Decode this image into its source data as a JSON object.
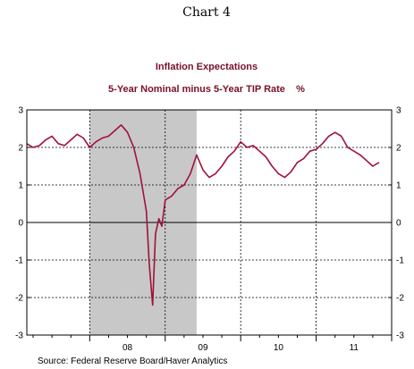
{
  "page_header": "Chart 4",
  "source": "Source:  Federal Reserve Board/Haver Analytics",
  "chart_data": {
    "type": "line",
    "title": "Inflation Expectations",
    "subtitle": "5-Year Nominal minus 5-Year TIP Rate    %",
    "xlabel": "",
    "ylabel": "",
    "ylim": [
      -3,
      3
    ],
    "y_ticks": [
      3,
      2,
      1,
      0,
      -1,
      -2,
      -3
    ],
    "y_tick_labels": [
      "3",
      "2",
      "1",
      "0",
      "-1",
      "-2",
      "-3"
    ],
    "xlim": [
      "2007-03",
      "2012-01"
    ],
    "x_tick_labels": [
      {
        "label": "08",
        "x": "2008-07"
      },
      {
        "label": "09",
        "x": "2009-07"
      },
      {
        "label": "10",
        "x": "2010-07"
      },
      {
        "label": "11",
        "x": "2011-07"
      }
    ],
    "vertical_gridlines_at": [
      "2008-01",
      "2009-01",
      "2010-01",
      "2011-01",
      "2012-01"
    ],
    "horizontal_gridlines": true,
    "recession_shading": {
      "start": "2008-01",
      "end": "2009-06",
      "color": "#c8c8c8"
    },
    "line_color": "#a0113a",
    "series": [
      {
        "name": "",
        "x": [
          "2007-03",
          "2007-04",
          "2007-05",
          "2007-06",
          "2007-07",
          "2007-08",
          "2007-09",
          "2007-10",
          "2007-11",
          "2007-12",
          "2008-01",
          "2008-02",
          "2008-03",
          "2008-04",
          "2008-05",
          "2008-06",
          "2008-07",
          "2008-08",
          "2008-09",
          "2008-10",
          "2008-10-15",
          "2008-11",
          "2008-11-15",
          "2008-12",
          "2008-12-15",
          "2009-01",
          "2009-02",
          "2009-03",
          "2009-04",
          "2009-05",
          "2009-06",
          "2009-07",
          "2009-08",
          "2009-09",
          "2009-10",
          "2009-11",
          "2009-12",
          "2010-01",
          "2010-02",
          "2010-03",
          "2010-04",
          "2010-05",
          "2010-06",
          "2010-07",
          "2010-08",
          "2010-09",
          "2010-10",
          "2010-11",
          "2010-12",
          "2011-01",
          "2011-02",
          "2011-03",
          "2011-04",
          "2011-05",
          "2011-06",
          "2011-07",
          "2011-08",
          "2011-09",
          "2011-10",
          "2011-11"
        ],
        "values": [
          2.1,
          2.0,
          2.05,
          2.2,
          2.3,
          2.1,
          2.05,
          2.2,
          2.35,
          2.25,
          2.0,
          2.15,
          2.25,
          2.3,
          2.45,
          2.6,
          2.4,
          2.0,
          1.3,
          0.3,
          -1.1,
          -2.2,
          -0.3,
          0.1,
          -0.1,
          0.6,
          0.7,
          0.9,
          1.0,
          1.3,
          1.8,
          1.4,
          1.2,
          1.3,
          1.5,
          1.75,
          1.9,
          2.15,
          2.0,
          2.05,
          1.9,
          1.75,
          1.5,
          1.3,
          1.2,
          1.35,
          1.6,
          1.7,
          1.9,
          1.95,
          2.1,
          2.3,
          2.4,
          2.3,
          2.0,
          1.9,
          1.8,
          1.65,
          1.5,
          1.6
        ]
      }
    ]
  }
}
